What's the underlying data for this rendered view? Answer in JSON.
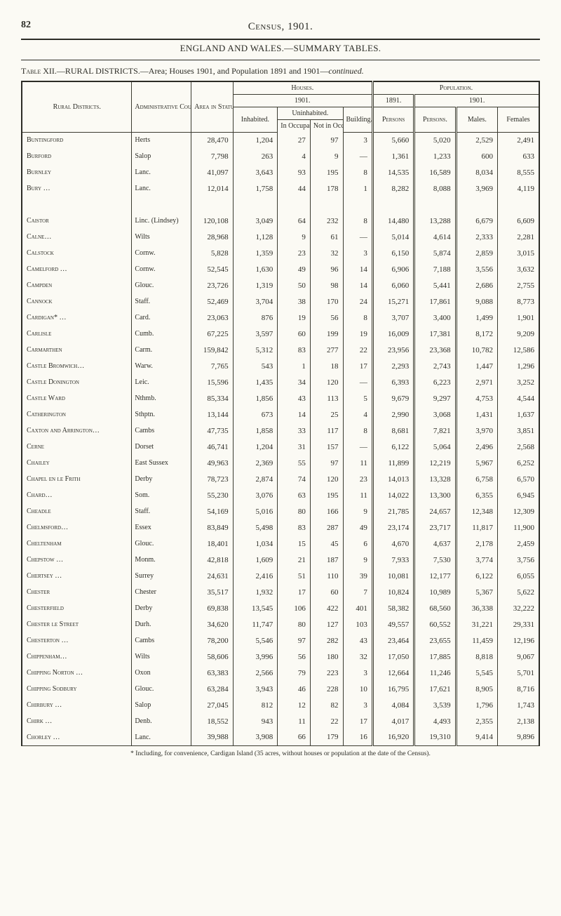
{
  "page_number": "82",
  "page_title": "Census, 1901.",
  "heading": "ENGLAND AND WALES.—SUMMARY TABLES.",
  "table_caption_pre": "Table XII.",
  "table_caption": "—RURAL DISTRICTS.—Area; Houses 1901, and Population 1891 and 1901—",
  "table_caption_ital": "continued.",
  "headers": {
    "rural_districts": "Rural Districts.",
    "admin_county": "Adminis­trative County.",
    "area": "Area in Statute Acres.",
    "houses": "Houses.",
    "population": "Population.",
    "y1901": "1901.",
    "y1891": "1891.",
    "uninhabited": "Uninhabited.",
    "inhabited": "Inhabited.",
    "in_occ": "In Occu­pation.",
    "not_in_occ": "Not in Occu­pation.",
    "building": "Build­ing.",
    "persons_u": "Persons",
    "persons": "Persons.",
    "males": "Males.",
    "females": "Females"
  },
  "footnote": "* Including, for convenience, Cardigan Island (35 acres, without houses or population at the date of the Census).",
  "colors": {
    "bg": "#fbfaf4",
    "ink": "#2c2c26"
  },
  "fontsizes": {
    "body": 11,
    "header": 10,
    "title": 15
  },
  "groups": [
    {
      "rows": [
        {
          "d": "Buntingford",
          "c": "Herts",
          "a": "28,470",
          "i": "1,204",
          "io": "27",
          "no": "97",
          "b": "3",
          "p91": "5,660",
          "p01": "5,020",
          "m": "2,529",
          "f": "2,491"
        },
        {
          "d": "Burford",
          "c": "Salop",
          "a": "7,798",
          "i": "263",
          "io": "4",
          "no": "9",
          "b": "—",
          "p91": "1,361",
          "p01": "1,233",
          "m": "600",
          "f": "633"
        },
        {
          "d": "Burnley",
          "c": "Lanc.",
          "a": "41,097",
          "i": "3,643",
          "io": "93",
          "no": "195",
          "b": "8",
          "p91": "14,535",
          "p01": "16,589",
          "m": "8,034",
          "f": "8,555"
        },
        {
          "d": "Bury …",
          "c": "Lanc.",
          "a": "12,014",
          "i": "1,758",
          "io": "44",
          "no": "178",
          "b": "1",
          "p91": "8,282",
          "p01": "8,088",
          "m": "3,969",
          "f": "4,119"
        }
      ]
    },
    {
      "rows": [
        {
          "d": "Caistor",
          "c": "Linc. (Lindsey)",
          "a": "120,108",
          "i": "3,049",
          "io": "64",
          "no": "232",
          "b": "8",
          "p91": "14,480",
          "p01": "13,288",
          "m": "6,679",
          "f": "6,609"
        },
        {
          "d": "Calne…",
          "c": "Wilts",
          "a": "28,968",
          "i": "1,128",
          "io": "9",
          "no": "61",
          "b": "—",
          "p91": "5,014",
          "p01": "4,614",
          "m": "2,333",
          "f": "2,281"
        },
        {
          "d": "Calstock",
          "c": "Cornw.",
          "a": "5,828",
          "i": "1,359",
          "io": "23",
          "no": "32",
          "b": "3",
          "p91": "6,150",
          "p01": "5,874",
          "m": "2,859",
          "f": "3,015"
        },
        {
          "d": "Camelford …",
          "c": "Cornw.",
          "a": "52,545",
          "i": "1,630",
          "io": "49",
          "no": "96",
          "b": "14",
          "p91": "6,906",
          "p01": "7,188",
          "m": "3,556",
          "f": "3,632"
        },
        {
          "d": "Campden",
          "c": "Glouc.",
          "a": "23,726",
          "i": "1,319",
          "io": "50",
          "no": "98",
          "b": "14",
          "p91": "6,060",
          "p01": "5,441",
          "m": "2,686",
          "f": "2,755"
        },
        {
          "d": "Cannock",
          "c": "Staff.",
          "a": "52,469",
          "i": "3,704",
          "io": "38",
          "no": "170",
          "b": "24",
          "p91": "15,271",
          "p01": "17,861",
          "m": "9,088",
          "f": "8,773"
        },
        {
          "d": "Cardigan* …",
          "c": "Card.",
          "a": "23,063",
          "i": "876",
          "io": "19",
          "no": "56",
          "b": "8",
          "p91": "3,707",
          "p01": "3,400",
          "m": "1,499",
          "f": "1,901"
        },
        {
          "d": "Carlisle",
          "c": "Cumb.",
          "a": "67,225",
          "i": "3,597",
          "io": "60",
          "no": "199",
          "b": "19",
          "p91": "16,009",
          "p01": "17,381",
          "m": "8,172",
          "f": "9,209"
        },
        {
          "d": "Carmarthen",
          "c": "Carm.",
          "a": "159,842",
          "i": "5,312",
          "io": "83",
          "no": "277",
          "b": "22",
          "p91": "23,956",
          "p01": "23,368",
          "m": "10,782",
          "f": "12,586"
        },
        {
          "d": "Castle Bromwich…",
          "c": "Warw.",
          "a": "7,765",
          "i": "543",
          "io": "1",
          "no": "18",
          "b": "17",
          "p91": "2,293",
          "p01": "2,743",
          "m": "1,447",
          "f": "1,296"
        },
        {
          "d": "Castle Donington",
          "c": "Leic.",
          "a": "15,596",
          "i": "1,435",
          "io": "34",
          "no": "120",
          "b": "—",
          "p91": "6,393",
          "p01": "6,223",
          "m": "2,971",
          "f": "3,252"
        },
        {
          "d": "Castle Ward",
          "c": "Nthmb.",
          "a": "85,334",
          "i": "1,856",
          "io": "43",
          "no": "113",
          "b": "5",
          "p91": "9,679",
          "p01": "9,297",
          "m": "4,753",
          "f": "4,544"
        },
        {
          "d": "Catherington",
          "c": "Sthptn.",
          "a": "13,144",
          "i": "673",
          "io": "14",
          "no": "25",
          "b": "4",
          "p91": "2,990",
          "p01": "3,068",
          "m": "1,431",
          "f": "1,637"
        },
        {
          "d": "Caxton and Arrington…",
          "c": "Cambs",
          "a": "47,735",
          "i": "1,858",
          "io": "33",
          "no": "117",
          "b": "8",
          "p91": "8,681",
          "p01": "7,821",
          "m": "3,970",
          "f": "3,851"
        },
        {
          "d": "Cerne",
          "c": "Dorset",
          "a": "46,741",
          "i": "1,204",
          "io": "31",
          "no": "157",
          "b": "—",
          "p91": "6,122",
          "p01": "5,064",
          "m": "2,496",
          "f": "2,568"
        },
        {
          "d": "Chailey",
          "c": "East Sussex",
          "a": "49,963",
          "i": "2,369",
          "io": "55",
          "no": "97",
          "b": "11",
          "p91": "11,899",
          "p01": "12,219",
          "m": "5,967",
          "f": "6,252"
        },
        {
          "d": "Chapel en le Frith",
          "c": "Derby",
          "a": "78,723",
          "i": "2,874",
          "io": "74",
          "no": "120",
          "b": "23",
          "p91": "14,013",
          "p01": "13,328",
          "m": "6,758",
          "f": "6,570"
        },
        {
          "d": "Chard…",
          "c": "Som.",
          "a": "55,230",
          "i": "3,076",
          "io": "63",
          "no": "195",
          "b": "11",
          "p91": "14,022",
          "p01": "13,300",
          "m": "6,355",
          "f": "6,945"
        },
        {
          "d": "Cheadle",
          "c": "Staff.",
          "a": "54,169",
          "i": "5,016",
          "io": "80",
          "no": "166",
          "b": "9",
          "p91": "21,785",
          "p01": "24,657",
          "m": "12,348",
          "f": "12,309"
        },
        {
          "d": "Chelmsford…",
          "c": "Essex",
          "a": "83,849",
          "i": "5,498",
          "io": "83",
          "no": "287",
          "b": "49",
          "p91": "23,174",
          "p01": "23,717",
          "m": "11,817",
          "f": "11,900"
        },
        {
          "d": "Cheltenham",
          "c": "Glouc.",
          "a": "18,401",
          "i": "1,034",
          "io": "15",
          "no": "45",
          "b": "6",
          "p91": "4,670",
          "p01": "4,637",
          "m": "2,178",
          "f": "2,459"
        },
        {
          "d": "Chepstow …",
          "c": "Monm.",
          "a": "42,818",
          "i": "1,609",
          "io": "21",
          "no": "187",
          "b": "9",
          "p91": "7,933",
          "p01": "7,530",
          "m": "3,774",
          "f": "3,756"
        },
        {
          "d": "Chertsey …",
          "c": "Surrey",
          "a": "24,631",
          "i": "2,416",
          "io": "51",
          "no": "110",
          "b": "39",
          "p91": "10,081",
          "p01": "12,177",
          "m": "6,122",
          "f": "6,055"
        },
        {
          "d": "Chester",
          "c": "Chester",
          "a": "35,517",
          "i": "1,932",
          "io": "17",
          "no": "60",
          "b": "7",
          "p91": "10,824",
          "p01": "10,989",
          "m": "5,367",
          "f": "5,622"
        },
        {
          "d": "Chesterfield",
          "c": "Derby",
          "a": "69,838",
          "i": "13,545",
          "io": "106",
          "no": "422",
          "b": "401",
          "p91": "58,382",
          "p01": "68,560",
          "m": "36,338",
          "f": "32,222"
        },
        {
          "d": "Chester le Street",
          "c": "Durh.",
          "a": "34,620",
          "i": "11,747",
          "io": "80",
          "no": "127",
          "b": "103",
          "p91": "49,557",
          "p01": "60,552",
          "m": "31,221",
          "f": "29,331"
        },
        {
          "d": "Chesterton …",
          "c": "Cambs",
          "a": "78,200",
          "i": "5,546",
          "io": "97",
          "no": "282",
          "b": "43",
          "p91": "23,464",
          "p01": "23,655",
          "m": "11,459",
          "f": "12,196"
        },
        {
          "d": "Chippenham…",
          "c": "Wilts",
          "a": "58,606",
          "i": "3,996",
          "io": "56",
          "no": "180",
          "b": "32",
          "p91": "17,050",
          "p01": "17,885",
          "m": "8,818",
          "f": "9,067"
        },
        {
          "d": "Chipping Norton …",
          "c": "Oxon",
          "a": "63,383",
          "i": "2,566",
          "io": "79",
          "no": "223",
          "b": "3",
          "p91": "12,664",
          "p01": "11,246",
          "m": "5,545",
          "f": "5,701"
        },
        {
          "d": "Chipping Sodbury",
          "c": "Glouc.",
          "a": "63,284",
          "i": "3,943",
          "io": "46",
          "no": "228",
          "b": "10",
          "p91": "16,795",
          "p01": "17,621",
          "m": "8,905",
          "f": "8,716"
        },
        {
          "d": "Chirbury …",
          "c": "Salop",
          "a": "27,045",
          "i": "812",
          "io": "12",
          "no": "82",
          "b": "3",
          "p91": "4,084",
          "p01": "3,539",
          "m": "1,796",
          "f": "1,743"
        },
        {
          "d": "Chirk …",
          "c": "Denb.",
          "a": "18,552",
          "i": "943",
          "io": "11",
          "no": "22",
          "b": "17",
          "p91": "4,017",
          "p01": "4,493",
          "m": "2,355",
          "f": "2,138"
        },
        {
          "d": "Chorley …",
          "c": "Lanc.",
          "a": "39,988",
          "i": "3,908",
          "io": "66",
          "no": "179",
          "b": "16",
          "p91": "16,920",
          "p01": "19,310",
          "m": "9,414",
          "f": "9,896"
        }
      ]
    }
  ]
}
